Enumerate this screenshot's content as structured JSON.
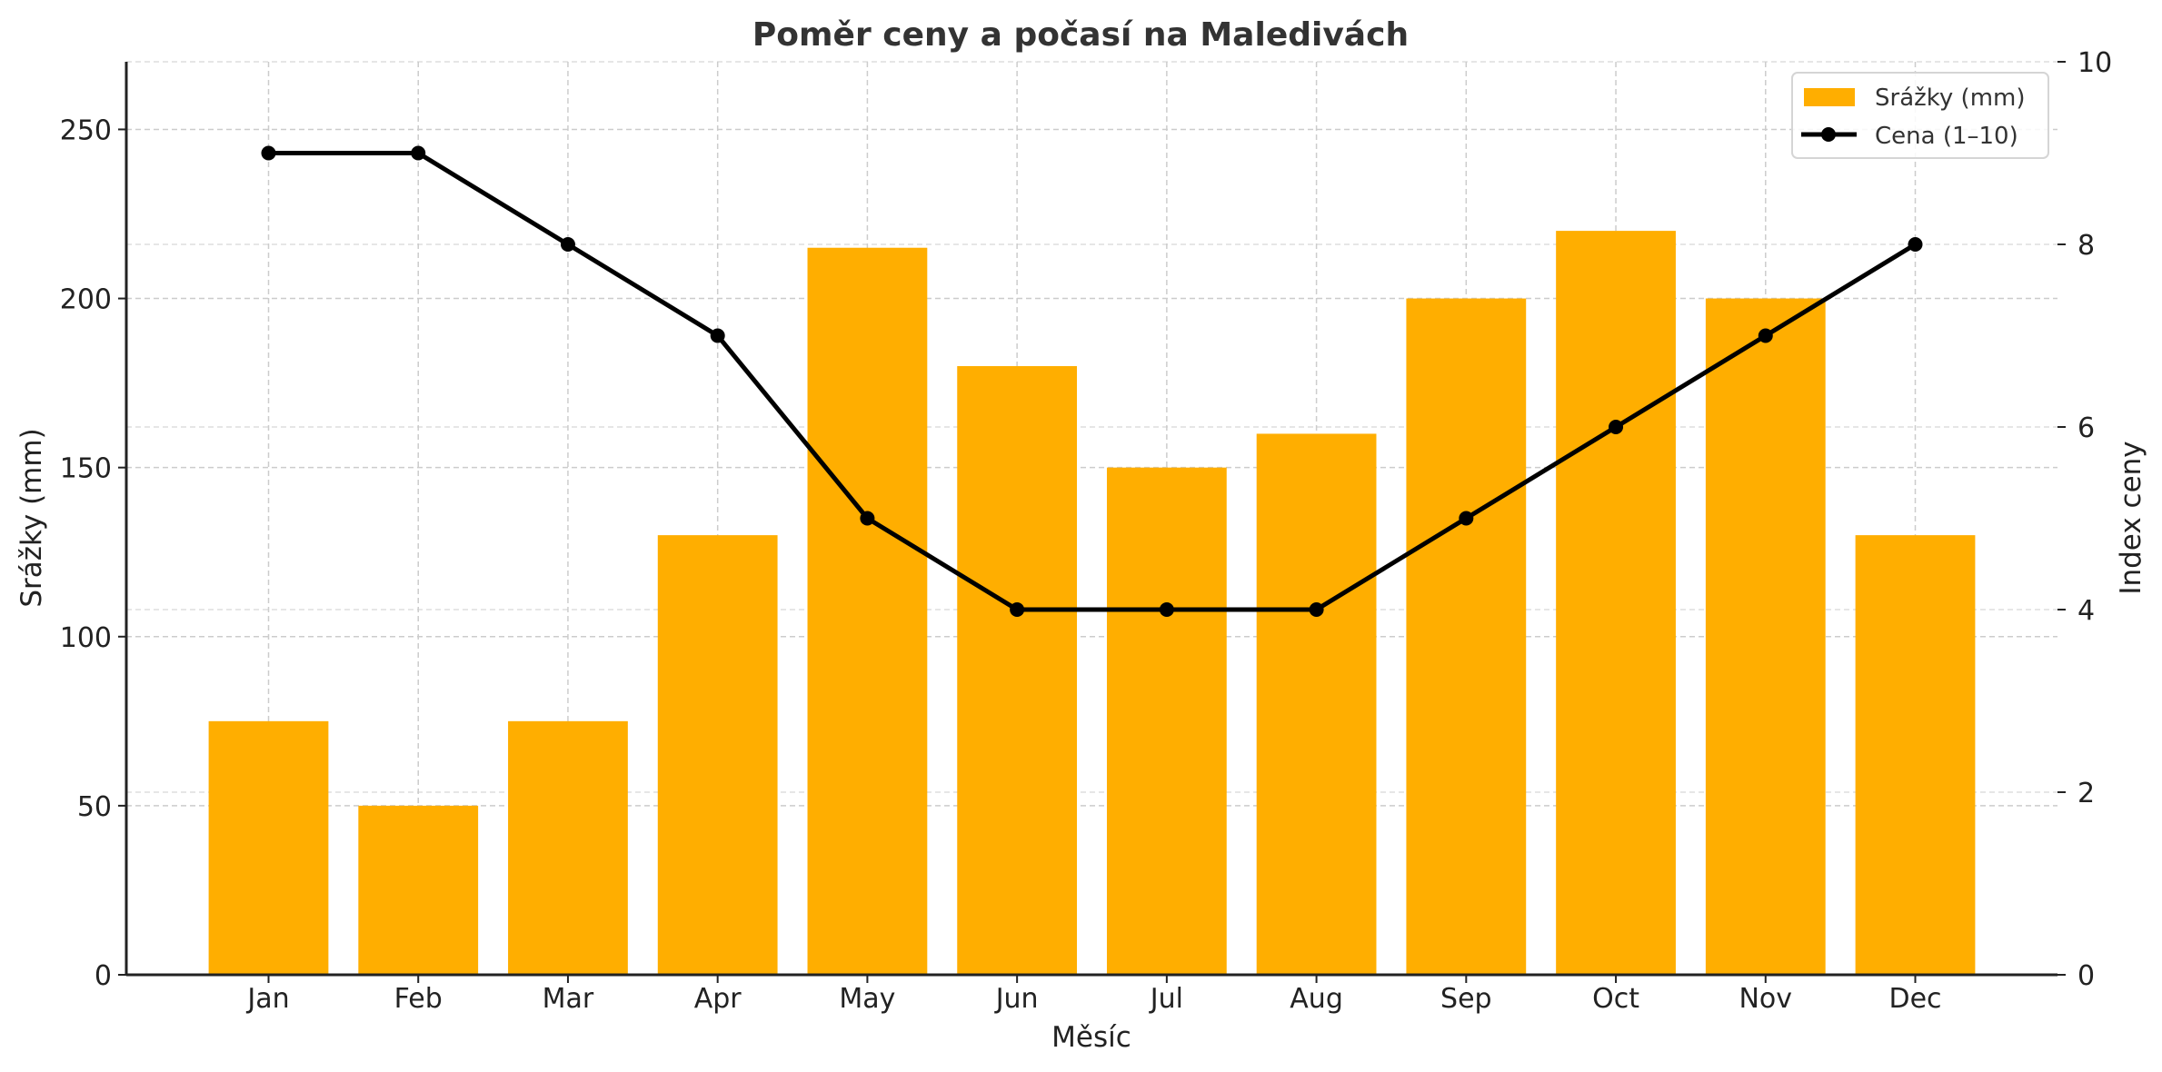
{
  "chart_data": {
    "type": "bar+line",
    "title": "Poměr ceny a počasí na Maledivách",
    "xlabel": "Měsíc",
    "ylabel": "Srážky (mm)",
    "ylabel_right": "Index ceny",
    "categories": [
      "Jan",
      "Feb",
      "Mar",
      "Apr",
      "May",
      "Jun",
      "Jul",
      "Aug",
      "Sep",
      "Oct",
      "Nov",
      "Dec"
    ],
    "series": [
      {
        "name": "Srážky (mm)",
        "type": "bar",
        "axis": "left",
        "color": "#FFAE00",
        "values": [
          75,
          50,
          75,
          130,
          215,
          180,
          150,
          160,
          200,
          220,
          200,
          130
        ]
      },
      {
        "name": "Cena (1–10)",
        "type": "line",
        "axis": "right",
        "color": "#000000",
        "marker": "circle",
        "values": [
          9,
          9,
          8,
          7,
          5,
          4,
          4,
          4,
          5,
          6,
          7,
          8
        ]
      }
    ],
    "ylim": [
      0,
      270
    ],
    "ylim_right": [
      0,
      10
    ],
    "yticks": [
      0,
      50,
      100,
      150,
      200,
      250
    ],
    "yticks_right": [
      0,
      2,
      4,
      6,
      8,
      10
    ],
    "grid": true,
    "legend_position": "upper right"
  },
  "legend": {
    "bar_label": "Srážky (mm)",
    "line_label": "Cena (1–10)"
  }
}
